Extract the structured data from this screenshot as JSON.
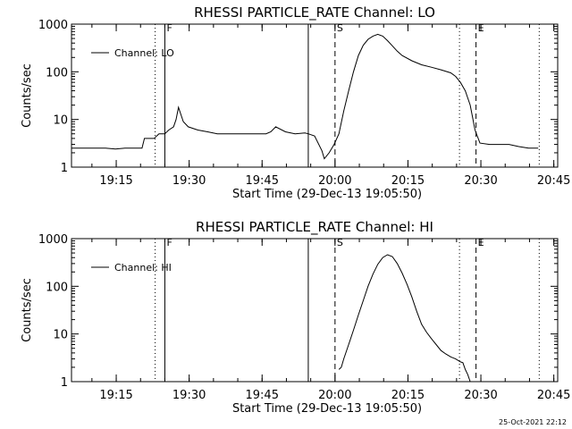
{
  "footer": {
    "timestamp": "25-Oct-2021 22:12"
  },
  "chart_data": [
    {
      "type": "line",
      "title": "RHESSI PARTICLE_RATE Channel: LO",
      "xlabel": "Start Time (29-Dec-13 19:05:50)",
      "ylabel": "Counts/sec",
      "y_scale": "log",
      "ylim": [
        1,
        1000
      ],
      "y_ticks": [
        "1",
        "10",
        "100",
        "1000"
      ],
      "x_ticks": [
        "19:15",
        "19:30",
        "19:45",
        "20:00",
        "20:15",
        "20:30",
        "20:45"
      ],
      "xlim_minutes_after_start": [
        0,
        100
      ],
      "legend": {
        "label": "Channel: LO",
        "placement": "top-left"
      },
      "markers": [
        {
          "label": "F",
          "style": "solid",
          "x": 19.2
        },
        {
          "label": "S",
          "style": "dashed",
          "x": 54.2
        },
        {
          "label": "E",
          "style": "dashed",
          "x": 83.2
        }
      ],
      "extra_lines": [
        {
          "style": "dotted",
          "x": 17.2
        },
        {
          "style": "solid",
          "x": 48.7
        },
        {
          "style": "dotted",
          "x": 79.8
        },
        {
          "style": "dotted",
          "x": 96.2
        }
      ],
      "series": [
        {
          "line_color": "#000000",
          "x": [
            0,
            3,
            5,
            7,
            9,
            11,
            13,
            14,
            14.5,
            15,
            16,
            17,
            17.5,
            18,
            19.2,
            20,
            21,
            21.5,
            22,
            23,
            24,
            26,
            28,
            30,
            33,
            36,
            38,
            40,
            41,
            42,
            44,
            46,
            48,
            48.7,
            50,
            51.5,
            52,
            53,
            54,
            55,
            56,
            57,
            58,
            59,
            60,
            61,
            62,
            63,
            64,
            65,
            66,
            67,
            68,
            70,
            72,
            74,
            76,
            78,
            79,
            80,
            81,
            82,
            83,
            84,
            86,
            88,
            90,
            92,
            94,
            96
          ],
          "y": [
            2.5,
            2.5,
            2.5,
            2.5,
            2.4,
            2.5,
            2.5,
            2.5,
            2.5,
            4,
            4,
            4,
            4.5,
            5,
            5,
            6,
            7,
            10,
            18,
            9,
            7,
            6,
            5.5,
            5,
            5,
            5,
            5,
            5,
            5.5,
            7,
            5.5,
            5,
            5.2,
            5,
            4.5,
            2.2,
            1.5,
            2,
            3,
            5,
            15,
            40,
            100,
            220,
            360,
            480,
            560,
            610,
            560,
            450,
            350,
            270,
            220,
            170,
            140,
            125,
            110,
            95,
            80,
            60,
            40,
            20,
            6,
            3.2,
            3,
            3,
            3,
            2.7,
            2.5,
            2.5
          ]
        }
      ]
    },
    {
      "type": "line",
      "title": "RHESSI PARTICLE_RATE Channel: HI",
      "xlabel": "Start Time (29-Dec-13 19:05:50)",
      "ylabel": "Counts/sec",
      "y_scale": "log",
      "ylim": [
        1,
        1000
      ],
      "y_ticks": [
        "1",
        "10",
        "100",
        "1000"
      ],
      "x_ticks": [
        "19:15",
        "19:30",
        "19:45",
        "20:00",
        "20:15",
        "20:30",
        "20:45"
      ],
      "xlim_minutes_after_start": [
        0,
        100
      ],
      "legend": {
        "label": "Channel: HI",
        "placement": "top-left"
      },
      "markers": [
        {
          "label": "F",
          "style": "solid",
          "x": 19.2
        },
        {
          "label": "S",
          "style": "dashed",
          "x": 54.2
        },
        {
          "label": "E",
          "style": "dashed",
          "x": 83.2
        }
      ],
      "extra_lines": [
        {
          "style": "dotted",
          "x": 17.2
        },
        {
          "style": "solid",
          "x": 48.7
        },
        {
          "style": "dotted",
          "x": 79.8
        },
        {
          "style": "dotted",
          "x": 96.2
        }
      ],
      "series": [
        {
          "line_color": "#000000",
          "x": [
            55,
            55.5,
            56,
            57,
            58,
            59,
            60,
            61,
            62,
            63,
            64,
            65,
            66,
            67,
            68,
            69,
            70,
            71,
            72,
            73,
            74,
            75,
            76,
            77,
            78,
            79,
            80,
            80.5,
            81,
            81.5,
            82
          ],
          "y": [
            1.8,
            2,
            3,
            6,
            12,
            25,
            50,
            100,
            180,
            290,
            400,
            460,
            420,
            300,
            190,
            110,
            60,
            30,
            16,
            11,
            8,
            6,
            4.5,
            3.8,
            3.3,
            3,
            2.6,
            2.5,
            1.8,
            1.4,
            1
          ]
        }
      ]
    }
  ]
}
